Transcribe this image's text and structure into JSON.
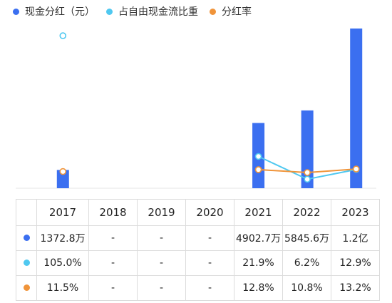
{
  "legend": [
    {
      "label": "现金分红（元）",
      "color": "#3b6ff0"
    },
    {
      "label": "占自由现金流比重",
      "color": "#4fc8f0"
    },
    {
      "label": "分红率",
      "color": "#f0943a"
    }
  ],
  "table": {
    "years": [
      "2017",
      "2018",
      "2019",
      "2020",
      "2021",
      "2022",
      "2023"
    ],
    "rows": [
      {
        "color": "#3b6ff0",
        "cells": [
          "1372.8万",
          "-",
          "-",
          "-",
          "4902.7万",
          "5845.6万",
          "1.2亿"
        ]
      },
      {
        "color": "#4fc8f0",
        "cells": [
          "105.0%",
          "-",
          "-",
          "-",
          "21.9%",
          "6.2%",
          "12.9%"
        ]
      },
      {
        "color": "#f0943a",
        "cells": [
          "11.5%",
          "-",
          "-",
          "-",
          "12.8%",
          "10.8%",
          "13.2%"
        ]
      }
    ]
  },
  "chart_data": {
    "type": "bar",
    "categories": [
      "2017",
      "2018",
      "2019",
      "2020",
      "2021",
      "2022",
      "2023"
    ],
    "series": [
      {
        "name": "现金分红（元）",
        "kind": "bar",
        "color": "#3b6ff0",
        "values": [
          13728000,
          null,
          null,
          null,
          49027000,
          58456000,
          120000000
        ]
      },
      {
        "name": "占自由现金流比重",
        "kind": "line",
        "color": "#4fc8f0",
        "values": [
          105.0,
          null,
          null,
          null,
          21.9,
          6.2,
          12.9
        ]
      },
      {
        "name": "分红率",
        "kind": "line",
        "color": "#f0943a",
        "values": [
          11.5,
          null,
          null,
          null,
          12.8,
          10.8,
          13.2
        ]
      }
    ],
    "title": "",
    "legend_position": "top-left",
    "grid": false
  }
}
